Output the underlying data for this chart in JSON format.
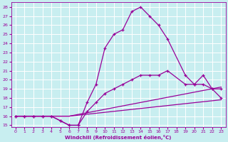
{
  "xlabel": "Windchill (Refroidissement éolien,°C)",
  "xlim": [
    -0.5,
    23.5
  ],
  "ylim": [
    14.8,
    28.5
  ],
  "xticks": [
    0,
    1,
    2,
    3,
    4,
    5,
    6,
    7,
    8,
    9,
    10,
    11,
    12,
    13,
    14,
    15,
    16,
    17,
    18,
    19,
    20,
    21,
    22,
    23
  ],
  "yticks": [
    15,
    16,
    17,
    18,
    19,
    20,
    21,
    22,
    23,
    24,
    25,
    26,
    27,
    28
  ],
  "bg_color": "#c8eef0",
  "grid_color": "#aad4d8",
  "line_color": "#990099",
  "line1_x": [
    0,
    1,
    2,
    3,
    4,
    5,
    6,
    7,
    8,
    9,
    10,
    11,
    12,
    13,
    14,
    15,
    16,
    17,
    19,
    20,
    21,
    22,
    23
  ],
  "line1_y": [
    16.0,
    16.0,
    16.0,
    16.0,
    16.0,
    15.5,
    15.0,
    15.0,
    17.5,
    19.5,
    23.5,
    25.0,
    25.5,
    27.5,
    28.0,
    27.0,
    26.0,
    24.5,
    20.5,
    19.5,
    20.5,
    19.0,
    19.0
  ],
  "line2_x": [
    0,
    1,
    2,
    3,
    4,
    5,
    6,
    7,
    8,
    9,
    10,
    11,
    12,
    13,
    14,
    15,
    16,
    17,
    19,
    20,
    21,
    22,
    23
  ],
  "line2_y": [
    16.0,
    16.0,
    16.0,
    16.0,
    16.0,
    15.5,
    15.0,
    15.0,
    16.5,
    17.5,
    18.5,
    19.0,
    19.5,
    20.0,
    20.5,
    20.5,
    20.5,
    21.0,
    19.5,
    19.5,
    19.5,
    19.0,
    18.0
  ],
  "line3_x": [
    0,
    6,
    23
  ],
  "line3_y": [
    16.0,
    16.0,
    19.2
  ],
  "line4_x": [
    0,
    6,
    23
  ],
  "line4_y": [
    16.0,
    16.0,
    17.8
  ]
}
